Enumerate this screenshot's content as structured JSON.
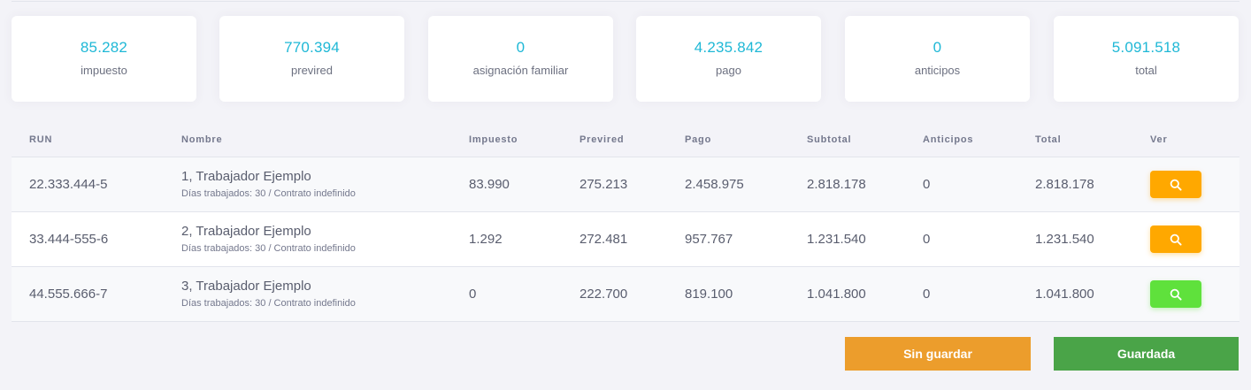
{
  "summary_cards": [
    {
      "value": "85.282",
      "label": "impuesto"
    },
    {
      "value": "770.394",
      "label": "previred"
    },
    {
      "value": "0",
      "label": "asignación familiar"
    },
    {
      "value": "4.235.842",
      "label": "pago"
    },
    {
      "value": "0",
      "label": "anticipos"
    },
    {
      "value": "5.091.518",
      "label": "total"
    }
  ],
  "table": {
    "headers": {
      "run": "RUN",
      "nombre": "Nombre",
      "impuesto": "Impuesto",
      "previred": "Previred",
      "pago": "Pago",
      "subtotal": "Subtotal",
      "anticipos": "Anticipos",
      "total": "Total",
      "ver": "Ver"
    },
    "rows": [
      {
        "run": "22.333.444-5",
        "nombre": "1, Trabajador Ejemplo",
        "detalle": "Días trabajados: 30 / Contrato indefinido",
        "impuesto": "83.990",
        "previred": "275.213",
        "pago": "2.458.975",
        "subtotal": "2.818.178",
        "anticipos": "0",
        "total": "2.818.178",
        "ver_button_color": "#ffa800",
        "ver_icon": "search-icon"
      },
      {
        "run": "33.444-555-6",
        "nombre": "2, Trabajador Ejemplo",
        "detalle": "Días trabajados: 30 / Contrato indefinido",
        "impuesto": "1.292",
        "previred": "272.481",
        "pago": "957.767",
        "subtotal": "1.231.540",
        "anticipos": "0",
        "total": "1.231.540",
        "ver_button_color": "#ffa800",
        "ver_icon": "search-icon"
      },
      {
        "run": "44.555.666-7",
        "nombre": "3, Trabajador Ejemplo",
        "detalle": "Días trabajados: 30 / Contrato indefinido",
        "impuesto": "0",
        "previred": "222.700",
        "pago": "819.100",
        "subtotal": "1.041.800",
        "anticipos": "0",
        "total": "1.041.800",
        "ver_button_color": "#5fe13c",
        "ver_icon": "search-icon"
      }
    ]
  },
  "actions": {
    "unsaved_label": "Sin guardar",
    "unsaved_color": "#ec9d2c",
    "saved_label": "Guardada",
    "saved_color": "#4aa448"
  },
  "colors": {
    "card_value": "#1fb8d6",
    "background": "#f3f3f8"
  }
}
